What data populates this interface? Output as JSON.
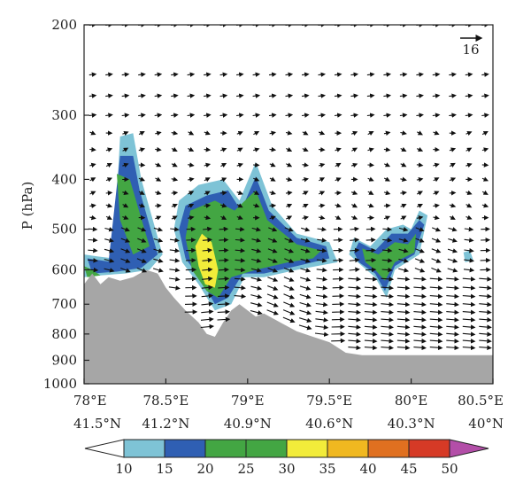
{
  "chart_data": {
    "type": "filled-contour-vector-cross-section",
    "title": "",
    "ylabel": "P (hPa)",
    "xlabel": "",
    "y_scale": "log",
    "y_range_hpa": [
      200,
      1000
    ],
    "y_ticks": [
      {
        "value": 200,
        "label": "200"
      },
      {
        "value": 300,
        "label": "300"
      },
      {
        "value": 400,
        "label": "400"
      },
      {
        "value": 500,
        "label": "500"
      },
      {
        "value": 600,
        "label": "600"
      },
      {
        "value": 700,
        "label": "700"
      },
      {
        "value": 800,
        "label": "800"
      },
      {
        "value": 900,
        "label": "900"
      },
      {
        "value": 1000,
        "label": "1000"
      }
    ],
    "x_range_lon": [
      78,
      80.5
    ],
    "x_ticks": [
      {
        "lon": 78.0,
        "label_lon": "78°E",
        "label_lat": "41.5°N"
      },
      {
        "lon": 78.5,
        "label_lon": "78.5°E",
        "label_lat": "41.2°N"
      },
      {
        "lon": 79.0,
        "label_lon": "79°E",
        "label_lat": "40.9°N"
      },
      {
        "lon": 79.5,
        "label_lon": "79.5°E",
        "label_lat": "40.6°N"
      },
      {
        "lon": 80.0,
        "label_lon": "80°E",
        "label_lat": "40.3°N"
      },
      {
        "lon": 80.5,
        "label_lon": "80.5°E",
        "label_lat": "40°N"
      }
    ],
    "reference_vector": {
      "label": "16"
    },
    "colorbar": {
      "levels": [
        "10",
        "15",
        "20",
        "25",
        "30",
        "35",
        "40",
        "45",
        "50"
      ],
      "colors": [
        "#7ec3d6",
        "#2f5fb3",
        "#43a643",
        "#43a643",
        "#f2ec3a",
        "#f0b820",
        "#e07020",
        "#d63a26",
        "#b34ea8"
      ],
      "extend": "both"
    },
    "terrain_color": "#a6a6a6",
    "terrain_profile": [
      {
        "lon": 78.0,
        "p": 640
      },
      {
        "lon": 78.05,
        "p": 610
      },
      {
        "lon": 78.1,
        "p": 640
      },
      {
        "lon": 78.15,
        "p": 620
      },
      {
        "lon": 78.22,
        "p": 630
      },
      {
        "lon": 78.3,
        "p": 620
      },
      {
        "lon": 78.38,
        "p": 600
      },
      {
        "lon": 78.45,
        "p": 610
      },
      {
        "lon": 78.5,
        "p": 650
      },
      {
        "lon": 78.55,
        "p": 680
      },
      {
        "lon": 78.62,
        "p": 720
      },
      {
        "lon": 78.7,
        "p": 760
      },
      {
        "lon": 78.75,
        "p": 800
      },
      {
        "lon": 78.8,
        "p": 810
      },
      {
        "lon": 78.85,
        "p": 760
      },
      {
        "lon": 78.9,
        "p": 720
      },
      {
        "lon": 78.95,
        "p": 700
      },
      {
        "lon": 79.0,
        "p": 720
      },
      {
        "lon": 79.05,
        "p": 740
      },
      {
        "lon": 79.1,
        "p": 730
      },
      {
        "lon": 79.2,
        "p": 760
      },
      {
        "lon": 79.3,
        "p": 790
      },
      {
        "lon": 79.4,
        "p": 810
      },
      {
        "lon": 79.5,
        "p": 830
      },
      {
        "lon": 79.6,
        "p": 870
      },
      {
        "lon": 79.7,
        "p": 880
      },
      {
        "lon": 80.0,
        "p": 880
      },
      {
        "lon": 80.5,
        "p": 880
      }
    ],
    "wind_speed_regions": [
      {
        "min": 10,
        "outline": [
          [
            78.0,
            560
          ],
          [
            78.08,
            565
          ],
          [
            78.18,
            570
          ],
          [
            78.22,
            330
          ],
          [
            78.3,
            325
          ],
          [
            78.35,
            400
          ],
          [
            78.48,
            560
          ],
          [
            78.4,
            600
          ],
          [
            78.25,
            610
          ],
          [
            78.1,
            615
          ],
          [
            78.0,
            620
          ]
        ]
      },
      {
        "min": 15,
        "outline": [
          [
            78.02,
            570
          ],
          [
            78.15,
            578
          ],
          [
            78.22,
            360
          ],
          [
            78.3,
            360
          ],
          [
            78.34,
            420
          ],
          [
            78.45,
            560
          ],
          [
            78.35,
            595
          ],
          [
            78.2,
            605
          ],
          [
            78.05,
            610
          ]
        ]
      },
      {
        "min": 20,
        "outline": [
          [
            78.2,
            390
          ],
          [
            78.28,
            400
          ],
          [
            78.4,
            540
          ],
          [
            78.3,
            560
          ],
          [
            78.22,
            480
          ]
        ]
      },
      {
        "min": 20,
        "outline": [
          [
            78.0,
            590
          ],
          [
            78.05,
            600
          ],
          [
            78.1,
            615
          ],
          [
            78.02,
            620
          ]
        ]
      },
      {
        "min": 10,
        "outline": [
          [
            78.58,
            440
          ],
          [
            78.7,
            410
          ],
          [
            78.85,
            400
          ],
          [
            78.95,
            440
          ],
          [
            79.05,
            370
          ],
          [
            79.15,
            450
          ],
          [
            79.3,
            510
          ],
          [
            79.5,
            530
          ],
          [
            79.55,
            580
          ],
          [
            79.3,
            600
          ],
          [
            79.1,
            620
          ],
          [
            78.98,
            620
          ],
          [
            78.9,
            700
          ],
          [
            78.8,
            720
          ],
          [
            78.7,
            640
          ],
          [
            78.6,
            580
          ],
          [
            78.55,
            500
          ]
        ]
      },
      {
        "min": 15,
        "outline": [
          [
            78.62,
            450
          ],
          [
            78.75,
            430
          ],
          [
            78.88,
            420
          ],
          [
            78.96,
            460
          ],
          [
            79.05,
            395
          ],
          [
            79.13,
            460
          ],
          [
            79.3,
            520
          ],
          [
            79.48,
            540
          ],
          [
            79.5,
            570
          ],
          [
            79.3,
            590
          ],
          [
            79.1,
            610
          ],
          [
            78.97,
            610
          ],
          [
            78.88,
            680
          ],
          [
            78.8,
            700
          ],
          [
            78.72,
            630
          ],
          [
            78.62,
            570
          ],
          [
            78.58,
            500
          ]
        ]
      },
      {
        "min": 20,
        "outline": [
          [
            78.65,
            460
          ],
          [
            78.8,
            440
          ],
          [
            78.92,
            460
          ],
          [
            79.05,
            420
          ],
          [
            79.12,
            480
          ],
          [
            79.3,
            535
          ],
          [
            79.45,
            550
          ],
          [
            79.4,
            570
          ],
          [
            79.25,
            580
          ],
          [
            79.05,
            600
          ],
          [
            78.9,
            620
          ],
          [
            78.82,
            680
          ],
          [
            78.75,
            660
          ],
          [
            78.66,
            600
          ],
          [
            78.62,
            520
          ]
        ]
      },
      {
        "min": 30,
        "outline": [
          [
            78.72,
            510
          ],
          [
            78.78,
            530
          ],
          [
            78.82,
            600
          ],
          [
            78.8,
            650
          ],
          [
            78.74,
            640
          ],
          [
            78.7,
            590
          ],
          [
            78.68,
            540
          ]
        ]
      },
      {
        "min": 10,
        "outline": [
          [
            79.65,
            520
          ],
          [
            79.75,
            540
          ],
          [
            79.85,
            500
          ],
          [
            79.95,
            490
          ],
          [
            80.0,
            500
          ],
          [
            80.05,
            460
          ],
          [
            80.1,
            470
          ],
          [
            80.05,
            560
          ],
          [
            79.9,
            600
          ],
          [
            79.85,
            680
          ],
          [
            79.78,
            620
          ],
          [
            79.7,
            590
          ],
          [
            79.62,
            560
          ]
        ]
      },
      {
        "min": 15,
        "outline": [
          [
            79.68,
            530
          ],
          [
            79.78,
            550
          ],
          [
            79.88,
            510
          ],
          [
            79.98,
            510
          ],
          [
            80.05,
            480
          ],
          [
            80.08,
            490
          ],
          [
            80.02,
            560
          ],
          [
            79.9,
            590
          ],
          [
            79.84,
            660
          ],
          [
            79.78,
            610
          ],
          [
            79.68,
            580
          ],
          [
            79.65,
            555
          ]
        ]
      },
      {
        "min": 20,
        "outline": [
          [
            79.7,
            545
          ],
          [
            79.8,
            560
          ],
          [
            79.9,
            530
          ],
          [
            79.98,
            535
          ],
          [
            80.03,
            510
          ],
          [
            80.02,
            555
          ],
          [
            79.9,
            580
          ],
          [
            79.84,
            630
          ],
          [
            79.78,
            600
          ],
          [
            79.72,
            580
          ]
        ]
      },
      {
        "min": 10,
        "outline": [
          [
            80.32,
            555
          ],
          [
            80.36,
            550
          ],
          [
            80.38,
            575
          ],
          [
            80.33,
            580
          ]
        ]
      }
    ]
  }
}
